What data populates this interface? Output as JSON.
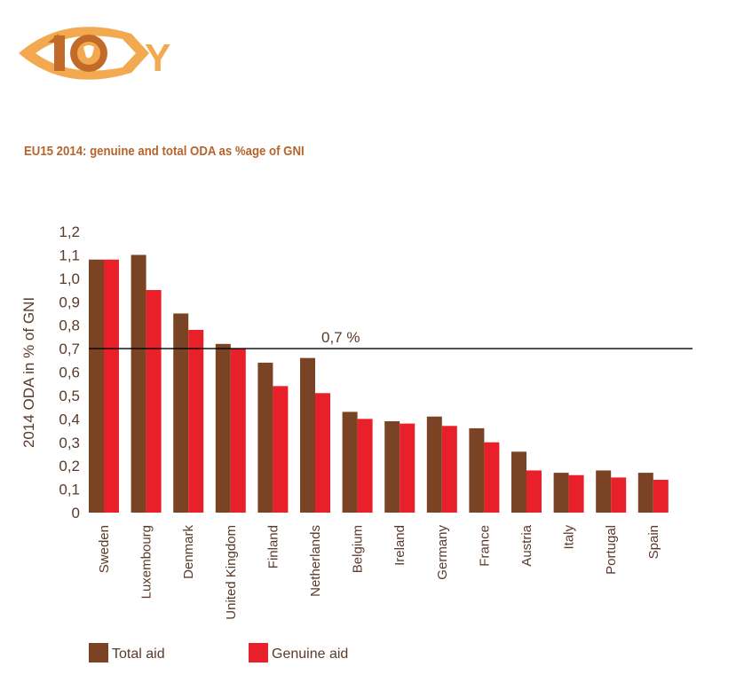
{
  "logo": {
    "text": "10Y"
  },
  "chart_data": {
    "type": "bar",
    "title": "EU15 2014: genuine and total ODA as %age of GNI",
    "ylabel": "2014 ODA in % of GNI",
    "xlabel": "",
    "ylim": [
      0,
      1.2
    ],
    "yticks": [
      "0",
      "0,1",
      "0,2",
      "0,3",
      "0,4",
      "0,5",
      "0,6",
      "0,7",
      "0,8",
      "0,9",
      "1,0",
      "1,1",
      "1,2"
    ],
    "categories": [
      "Sweden",
      "Luxembourg",
      "Denmark",
      "United Kingdom",
      "Finland",
      "Netherlands",
      "Belgium",
      "Ireland",
      "Germany",
      "France",
      "Austria",
      "Italy",
      "Portugal",
      "Spain"
    ],
    "series": [
      {
        "name": "Total aid",
        "color": "#7a4424",
        "values": [
          1.08,
          1.1,
          0.85,
          0.72,
          0.64,
          0.66,
          0.43,
          0.39,
          0.41,
          0.36,
          0.26,
          0.17,
          0.18,
          0.17
        ]
      },
      {
        "name": "Genuine aid",
        "color": "#e8202a",
        "values": [
          1.08,
          0.95,
          0.78,
          0.7,
          0.54,
          0.51,
          0.4,
          0.38,
          0.37,
          0.3,
          0.18,
          0.16,
          0.15,
          0.14
        ]
      }
    ],
    "reference_line": {
      "value": 0.7,
      "label": "0,7 %"
    },
    "grid": false,
    "legend": "bottom-left"
  }
}
